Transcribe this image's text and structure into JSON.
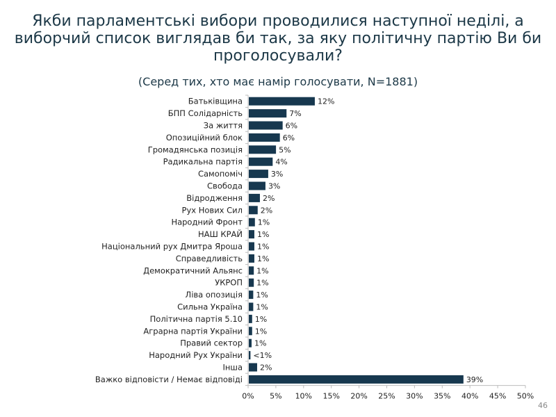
{
  "page_number": "46",
  "chart_data": {
    "type": "bar",
    "orientation": "horizontal",
    "title": "Якби парламентські вибори проводилися наступної неділі, а виборчий список виглядав би так, за яку політичну партію Ви би проголосували?",
    "subtitle": "(Серед тих, хто має намір голосувати, N=1881)",
    "categories": [
      "Батьківщина",
      "БПП Солідарність",
      "За життя",
      "Опозиційний блок",
      "Громадянська позиція",
      "Радикальна партія",
      "Самопоміч",
      "Свобода",
      "Відродження",
      "Рух Нових Сил",
      "Народний Фронт",
      "НАШ КРАЙ",
      "Національний рух Дмитра Яроша",
      "Справедливість",
      "Демократичний Альянс",
      "УКРОП",
      "Ліва опозиція",
      "Сильна Україна",
      "Політична партія 5.10",
      "Аграрна партія України",
      "Правий сектор",
      "Народний Рух України",
      "Інша",
      "Важко відповісти / Немає відповіді"
    ],
    "values": [
      11.9,
      6.8,
      6.1,
      5.6,
      4.9,
      4.3,
      3.5,
      3.0,
      2.0,
      1.6,
      1.1,
      1.0,
      1.0,
      1.0,
      0.9,
      0.9,
      0.8,
      0.8,
      0.6,
      0.6,
      0.5,
      0.3,
      1.5,
      38.7
    ],
    "data_labels": [
      "12%",
      "7%",
      "6%",
      "6%",
      "5%",
      "4%",
      "3%",
      "3%",
      "2%",
      "2%",
      "1%",
      "1%",
      "1%",
      "1%",
      "1%",
      "1%",
      "1%",
      "1%",
      "1%",
      "1%",
      "1%",
      "<1%",
      "2%",
      "39%"
    ],
    "xlim": [
      0,
      50
    ],
    "x_ticks": [
      "0%",
      "5%",
      "10%",
      "15%",
      "20%",
      "25%",
      "30%",
      "35%",
      "40%",
      "45%",
      "50%"
    ],
    "grid": false,
    "bar_color": "#17384f",
    "xlabel": "",
    "ylabel": ""
  }
}
